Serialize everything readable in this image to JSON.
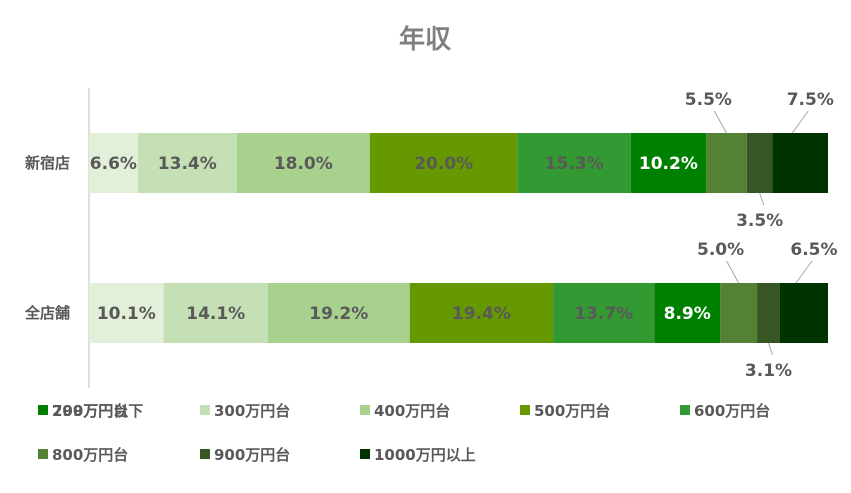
{
  "chart_data": {
    "type": "bar",
    "orientation": "horizontal",
    "stacked": "percent",
    "title": "年収",
    "categories": [
      "新宿店",
      "全店舗"
    ],
    "series": [
      {
        "name": "299万円以下",
        "color": "#e2f0d9",
        "values": [
          6.6,
          10.1
        ]
      },
      {
        "name": "300万円台",
        "color": "#c5e0b4",
        "values": [
          13.4,
          14.1
        ]
      },
      {
        "name": "400万円台",
        "color": "#a9d18e",
        "values": [
          18.0,
          19.2
        ]
      },
      {
        "name": "500万円台",
        "color": "#669900",
        "values": [
          20.0,
          19.4
        ]
      },
      {
        "name": "600万円台",
        "color": "#339933",
        "values": [
          15.3,
          13.7
        ]
      },
      {
        "name": "700万円台",
        "color": "#008000",
        "values": [
          10.2,
          8.9
        ]
      },
      {
        "name": "800万円台",
        "color": "#548235",
        "values": [
          5.5,
          5.0
        ]
      },
      {
        "name": "900万円台",
        "color": "#375623",
        "values": [
          3.5,
          3.1
        ]
      },
      {
        "name": "1000万円以上",
        "color": "#003300",
        "values": [
          7.5,
          6.5
        ]
      }
    ],
    "label_suffix": "%",
    "legend_position": "bottom",
    "grid": false
  }
}
